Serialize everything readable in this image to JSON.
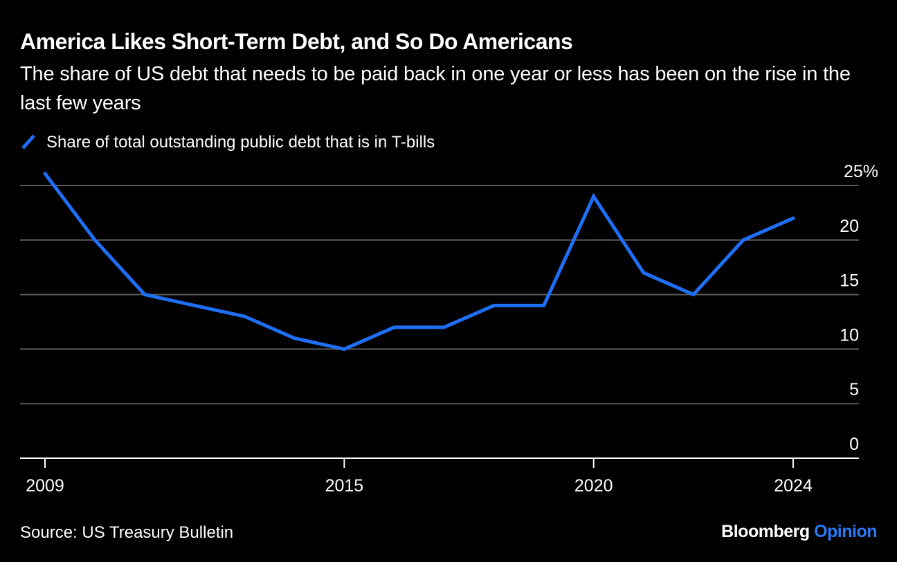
{
  "header": {
    "title": "America Likes Short-Term Debt, and So Do Americans",
    "subtitle": "The share of US debt that needs to be paid back in one year or less has been on the rise in the last few years"
  },
  "footer": {
    "source": "Source: US Treasury Bulletin",
    "brand_main": "Bloomberg",
    "brand_accent": "Opinion"
  },
  "colors": {
    "background": "#000000",
    "line": "#1f6ff6",
    "grid": "#5a5a5a",
    "text": "#ffffff",
    "brand_accent": "#2b7bf6"
  },
  "chart_data": {
    "type": "line",
    "title": "America Likes Short-Term Debt, and So Do Americans",
    "subtitle": "The share of US debt that needs to be paid back in one year or less has been on the rise in the last few years",
    "xlabel": "",
    "ylabel": "",
    "x": [
      2009,
      2010,
      2011,
      2012,
      2013,
      2014,
      2015,
      2016,
      2017,
      2018,
      2019,
      2020,
      2021,
      2022,
      2023,
      2024
    ],
    "series": [
      {
        "name": "Share of total outstanding public debt that is in T-bills",
        "values": [
          26.1,
          20.0,
          15.0,
          14.0,
          13.0,
          11.0,
          10.0,
          12.0,
          12.0,
          14.0,
          14.0,
          24.0,
          17.0,
          15.0,
          20.0,
          22.0
        ]
      }
    ],
    "xticks": [
      2009,
      2015,
      2020,
      2024
    ],
    "xtick_labels": [
      "2009",
      "2015",
      "2020",
      "2024"
    ],
    "yticks": [
      0,
      5,
      10,
      15,
      20,
      25
    ],
    "ytick_labels": [
      "0",
      "5",
      "10",
      "15",
      "20",
      "25%"
    ],
    "ylim": [
      0,
      25
    ],
    "xlim": [
      2008.5,
      2025
    ],
    "yaxis_side": "right",
    "grid": true,
    "legend_position": "top-left"
  }
}
